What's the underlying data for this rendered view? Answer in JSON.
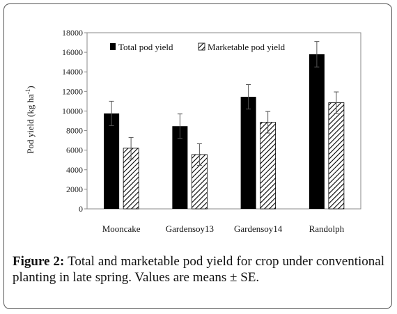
{
  "caption": {
    "label": "Figure",
    "number": "2:",
    "text": "Total and marketable pod yield for crop under conventional planting in late spring. Values are means ± SE."
  },
  "colors": {
    "total": "#000000",
    "marketable_hatch": "#000000",
    "axis": "#777777"
  },
  "chart_data": {
    "type": "bar",
    "categories": [
      "Mooncake",
      "Gardensoy13",
      "Gardensoy14",
      "Randolph"
    ],
    "series": [
      {
        "name": "Total pod yield",
        "values": [
          9750,
          8450,
          11450,
          15800
        ],
        "errors": [
          1250,
          1250,
          1250,
          1300
        ],
        "fill": "solid"
      },
      {
        "name": "Marketable pod yield",
        "values": [
          6200,
          5550,
          8850,
          10850
        ],
        "errors": [
          1100,
          1100,
          1100,
          1100
        ],
        "fill": "hatched"
      }
    ],
    "ylabel_main": "Pod yield (kg ha",
    "ylabel_sup": "-1",
    "ylabel_end": ")",
    "ylim": [
      0,
      18000
    ],
    "yticks": [
      "0",
      "2000",
      "4000",
      "6000",
      "8000",
      "10000",
      "12000",
      "14000",
      "16000",
      "18000"
    ],
    "legend_position": "top-left inside",
    "grid": false
  }
}
